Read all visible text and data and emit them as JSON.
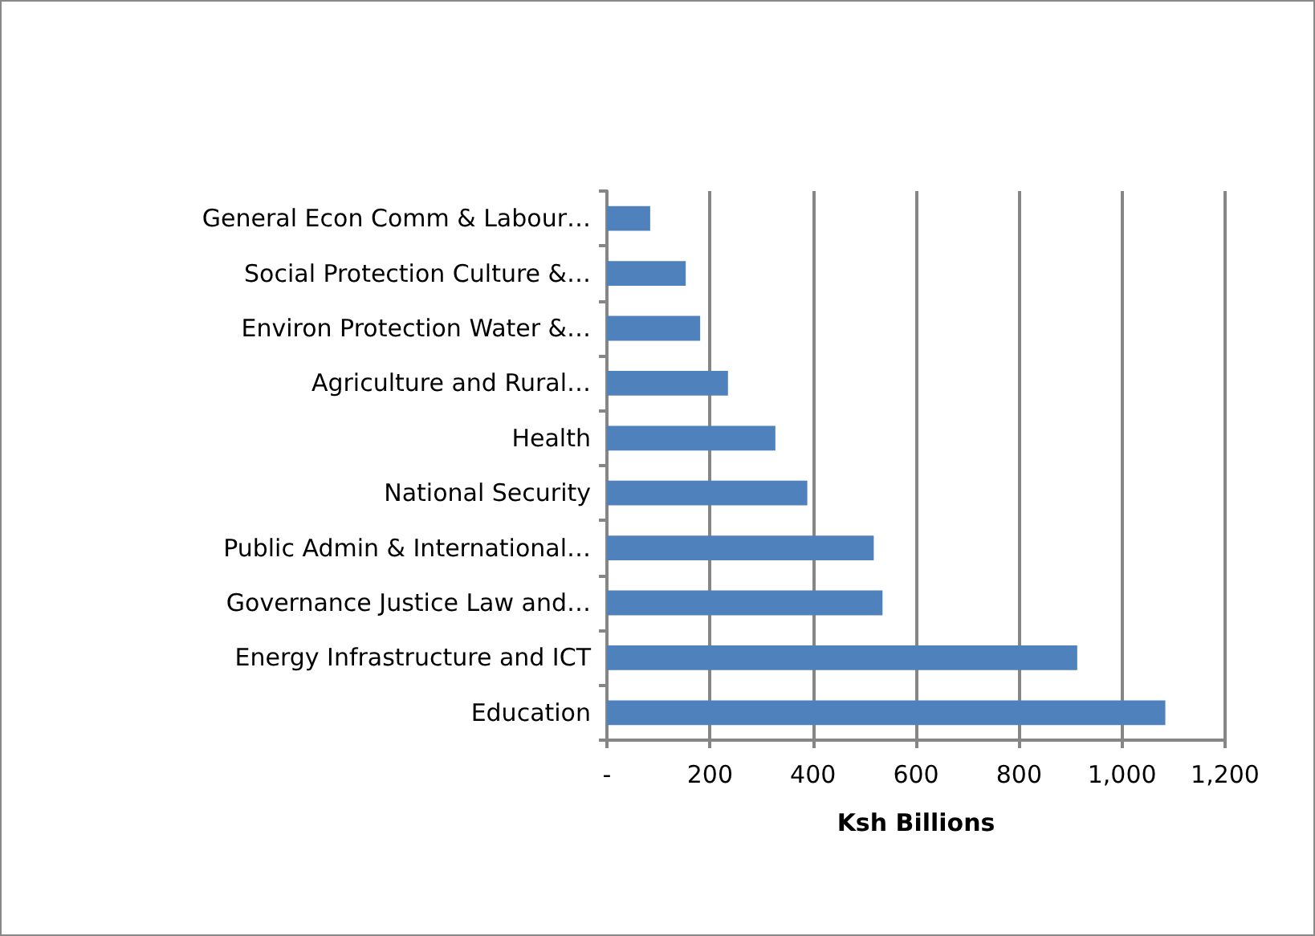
{
  "chart_data": {
    "type": "bar",
    "orientation": "horizontal",
    "xlabel": "Ksh Billions",
    "categories": [
      "General Econ Comm & Labour…",
      "Social Protection Culture &…",
      "Environ Protection Water &…",
      "Agriculture and Rural…",
      "Health",
      "National Security",
      "Public Admin & International…",
      "Governance Justice Law and…",
      "Energy Infrastructure and ICT",
      "Education"
    ],
    "values": [
      84,
      153,
      181,
      235,
      327,
      389,
      518,
      535,
      913,
      1084
    ],
    "color": "#4f81bd",
    "xlim": [
      0,
      1200
    ],
    "xticks": [
      {
        "value": 0,
        "label": "-"
      },
      200,
      400,
      600,
      800,
      {
        "value": 1000,
        "label": "1,000"
      },
      {
        "value": 1200,
        "label": "1,200"
      }
    ],
    "grid": "x"
  }
}
